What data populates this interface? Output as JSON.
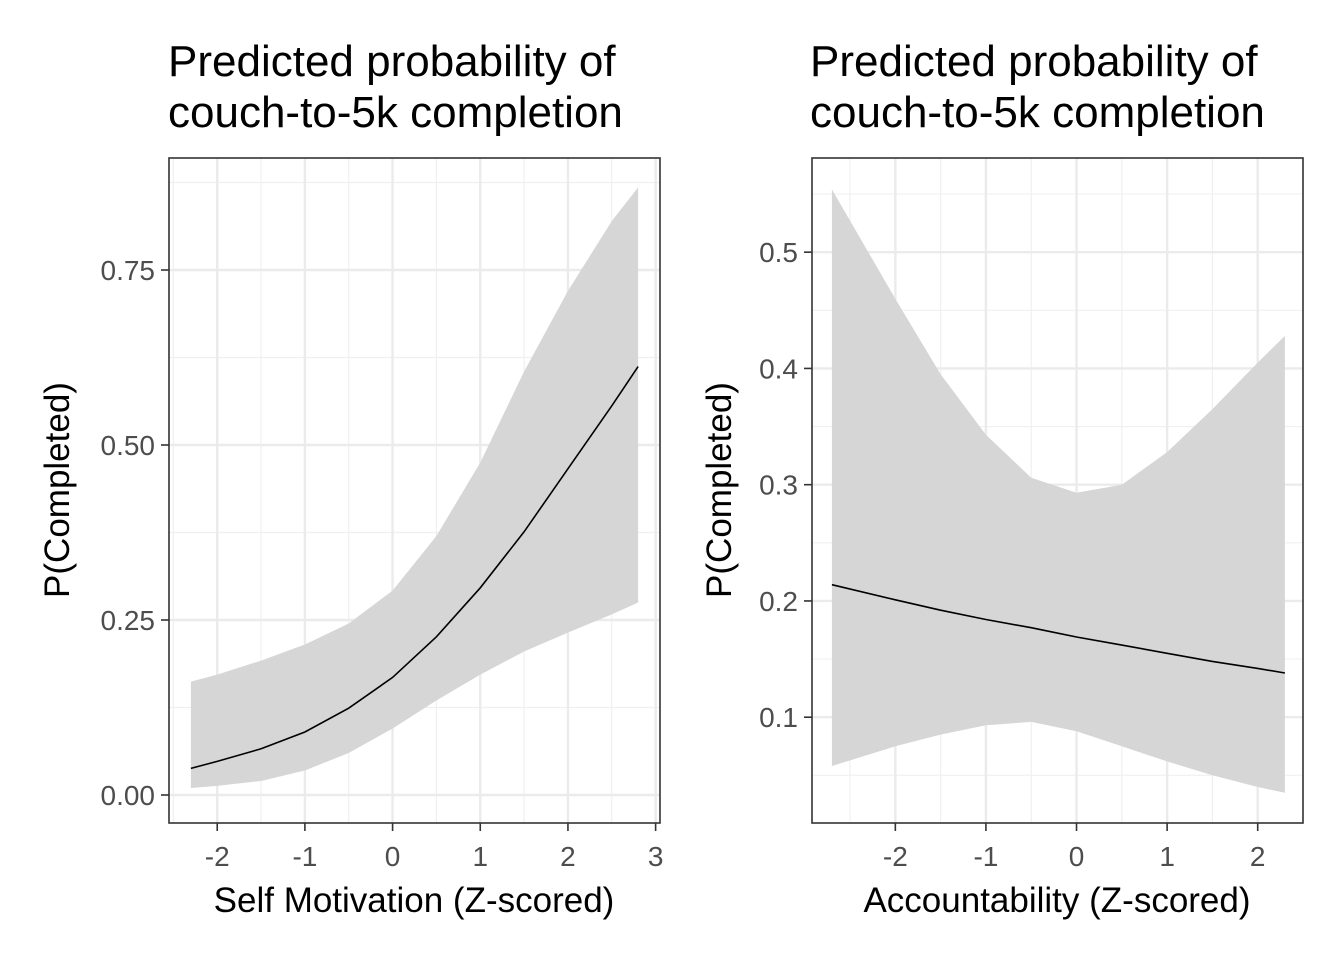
{
  "chart_data": [
    {
      "type": "line",
      "title_lines": [
        "Predicted probability of",
        "couch-to-5k completion"
      ],
      "xlabel": "Self Motivation (Z-scored)",
      "ylabel": "P(Completed)",
      "xlim": [
        -2.55,
        3.05
      ],
      "ylim": [
        -0.04,
        0.91
      ],
      "x_ticks": [
        -2,
        -1,
        0,
        1,
        2,
        3
      ],
      "x_tick_labels": [
        "-2",
        "-1",
        "0",
        "1",
        "2",
        "3"
      ],
      "y_ticks": [
        0,
        0.25,
        0.5,
        0.75
      ],
      "y_tick_labels": [
        "0.00",
        "0.25",
        "0.50",
        "0.75"
      ],
      "grid": true,
      "series": [
        {
          "x": [
            -2.3,
            -2.0,
            -1.5,
            -1.0,
            -0.5,
            0.0,
            0.5,
            1.0,
            1.5,
            2.0,
            2.5,
            2.8
          ],
          "y": [
            0.038,
            0.048,
            0.066,
            0.09,
            0.124,
            0.168,
            0.226,
            0.296,
            0.376,
            0.466,
            0.556,
            0.612
          ],
          "lower": [
            0.01,
            0.013,
            0.02,
            0.035,
            0.06,
            0.095,
            0.135,
            0.172,
            0.205,
            0.232,
            0.258,
            0.275
          ],
          "upper": [
            0.162,
            0.172,
            0.192,
            0.215,
            0.245,
            0.292,
            0.37,
            0.475,
            0.605,
            0.72,
            0.82,
            0.868
          ]
        }
      ]
    },
    {
      "type": "line",
      "title_lines": [
        "Predicted probability of",
        "couch-to-5k completion"
      ],
      "xlabel": "Accountability (Z-scored)",
      "ylabel": "P(Completed)",
      "xlim": [
        -2.92,
        2.5
      ],
      "ylim": [
        0.009,
        0.581
      ],
      "x_ticks": [
        -2,
        -1,
        0,
        1,
        2
      ],
      "x_tick_labels": [
        "-2",
        "-1",
        "0",
        "1",
        "2"
      ],
      "y_ticks": [
        0.1,
        0.2,
        0.3,
        0.4,
        0.5
      ],
      "y_tick_labels": [
        "0.1",
        "0.2",
        "0.3",
        "0.4",
        "0.5"
      ],
      "grid": true,
      "series": [
        {
          "x": [
            -2.7,
            -2.0,
            -1.5,
            -1.0,
            -0.5,
            0.0,
            0.5,
            1.0,
            1.5,
            2.0,
            2.3
          ],
          "y": [
            0.214,
            0.201,
            0.192,
            0.184,
            0.177,
            0.169,
            0.162,
            0.155,
            0.148,
            0.142,
            0.138
          ],
          "lower": [
            0.058,
            0.075,
            0.085,
            0.093,
            0.096,
            0.088,
            0.075,
            0.062,
            0.05,
            0.04,
            0.035
          ],
          "upper": [
            0.554,
            0.46,
            0.395,
            0.343,
            0.306,
            0.293,
            0.3,
            0.328,
            0.365,
            0.405,
            0.428
          ]
        }
      ]
    }
  ]
}
